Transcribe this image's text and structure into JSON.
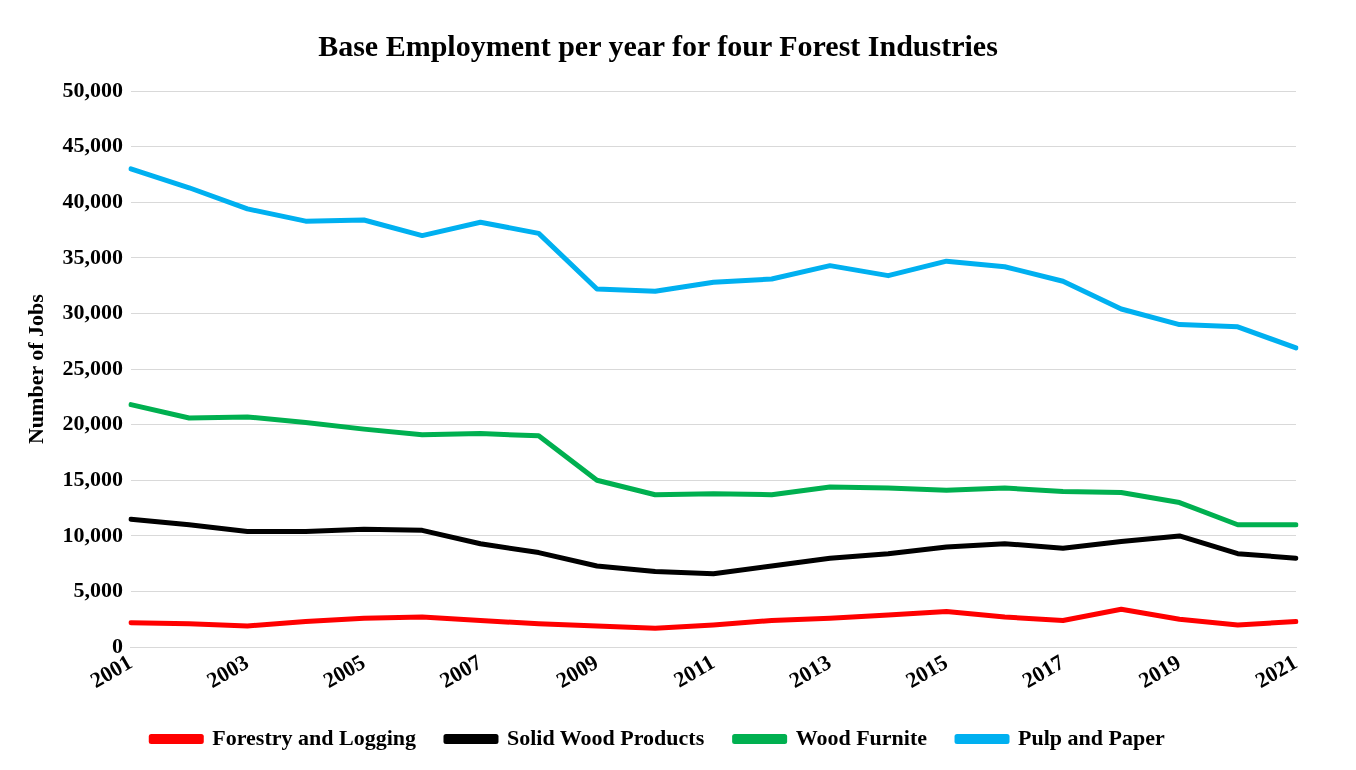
{
  "chart_data": {
    "type": "line",
    "title": "Base Employment per year for four Forest Industries",
    "ylabel": "Number of Jobs",
    "categories": [
      "2001",
      null,
      "2003",
      null,
      "2005",
      null,
      "2007",
      null,
      "2009",
      null,
      "2011",
      null,
      "2013",
      null,
      "2015",
      null,
      "2017",
      null,
      "2019",
      null,
      "2021"
    ],
    "series": [
      {
        "name": "Forestry and Logging",
        "color": "#ff0000",
        "values": [
          2200,
          2100,
          1900,
          2300,
          2600,
          2700,
          2400,
          2100,
          1900,
          1700,
          2000,
          2400,
          2600,
          2900,
          3200,
          2700,
          2400,
          3400,
          2500,
          2000,
          2300
        ]
      },
      {
        "name": "Solid Wood Products",
        "color": "#000000",
        "values": [
          11500,
          11000,
          10400,
          10400,
          10600,
          10500,
          9300,
          8500,
          7300,
          6800,
          6600,
          7300,
          8000,
          8400,
          9000,
          9300,
          8900,
          9500,
          10000,
          8400,
          8000
        ]
      },
      {
        "name": "Wood Furnite",
        "color": "#00b050",
        "values": [
          21800,
          20600,
          20700,
          20200,
          19600,
          19100,
          19200,
          19000,
          15000,
          13700,
          13800,
          13700,
          14400,
          14300,
          14100,
          14300,
          14000,
          13900,
          13000,
          11000,
          11000
        ]
      },
      {
        "name": "Pulp and Paper",
        "color": "#00b0f0",
        "values": [
          43000,
          41300,
          39400,
          38300,
          38400,
          37000,
          38200,
          37200,
          32200,
          32000,
          32800,
          33100,
          34300,
          33400,
          34700,
          34200,
          32900,
          30400,
          29000,
          28800,
          26900
        ]
      }
    ],
    "ylim": [
      0,
      50000
    ],
    "yticks": [
      0,
      {
        "value": 5000,
        "label": "5,000"
      },
      {
        "value": 10000,
        "label": "10,000"
      },
      {
        "value": 15000,
        "label": "15,000"
      },
      {
        "value": 20000,
        "label": "20,000"
      },
      {
        "value": 25000,
        "label": "25,000"
      },
      {
        "value": 30000,
        "label": "30,000"
      },
      {
        "value": 35000,
        "label": "35,000"
      },
      {
        "value": 40000,
        "label": "40,000"
      },
      {
        "value": 45000,
        "label": "45,000"
      },
      {
        "value": 50000,
        "label": "50,000"
      }
    ],
    "grid": "y",
    "legend": "bottom",
    "marker": "none",
    "line_style": "solid"
  }
}
